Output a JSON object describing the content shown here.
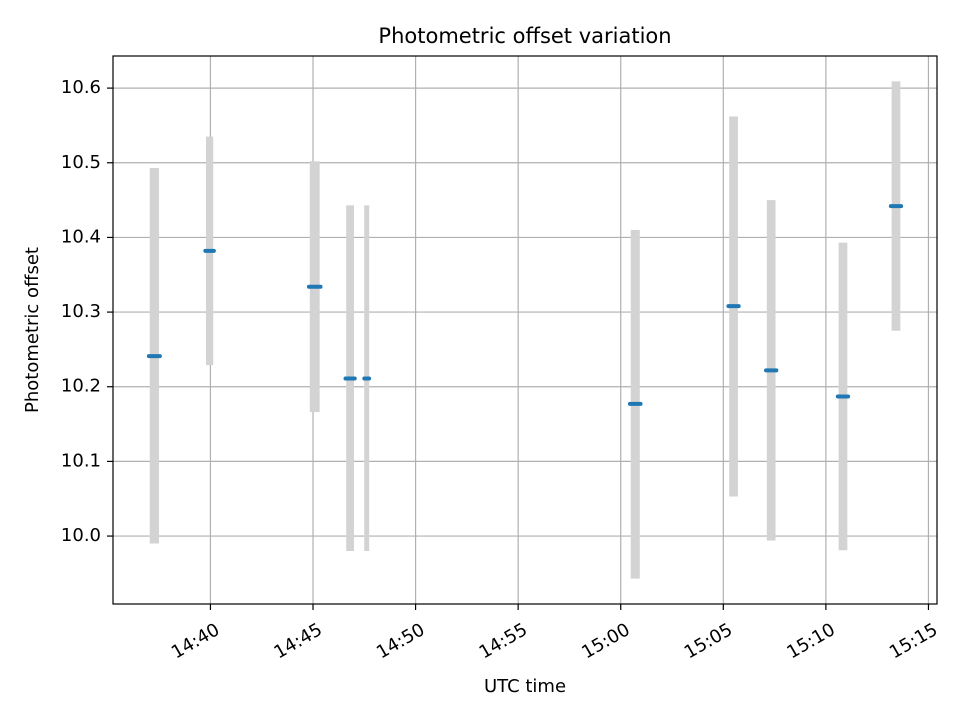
{
  "chart_data": {
    "type": "scatter",
    "title": "Photometric offset variation",
    "xlabel": "UTC time",
    "ylabel": "Photometric offset",
    "x_ticks": [
      "14:40",
      "14:45",
      "14:50",
      "14:55",
      "15:00",
      "15:05",
      "15:10",
      "15:15"
    ],
    "y_ticks": [
      "10.0",
      "10.1",
      "10.2",
      "10.3",
      "10.4",
      "10.5",
      "10.6"
    ],
    "xlim": [
      "14:35:15",
      "15:15:25"
    ],
    "ylim": [
      9.909,
      10.643
    ],
    "grid": true,
    "colors": {
      "point": "#1f77b4",
      "errorbar": "#d3d3d3",
      "grid": "#b0b0b0"
    },
    "series": [
      {
        "values": [
          {
            "start": "14:37:00",
            "end": "14:37:32",
            "y": 10.241,
            "y_low": 9.99,
            "y_high": 10.493
          },
          {
            "start": "14:39:45",
            "end": "14:40:10",
            "y": 10.382,
            "y_low": 10.229,
            "y_high": 10.535
          },
          {
            "start": "14:44:48",
            "end": "14:45:22",
            "y": 10.334,
            "y_low": 10.166,
            "y_high": 10.502
          },
          {
            "start": "14:46:35",
            "end": "14:47:02",
            "y": 10.211,
            "y_low": 9.98,
            "y_high": 10.443
          },
          {
            "start": "14:47:30",
            "end": "14:47:44",
            "y": 10.211,
            "y_low": 9.98,
            "y_high": 10.443
          },
          {
            "start": "15:00:27",
            "end": "15:00:58",
            "y": 10.177,
            "y_low": 9.943,
            "y_high": 10.41
          },
          {
            "start": "15:05:15",
            "end": "15:05:45",
            "y": 10.308,
            "y_low": 10.053,
            "y_high": 10.562
          },
          {
            "start": "15:07:05",
            "end": "15:07:35",
            "y": 10.222,
            "y_low": 9.994,
            "y_high": 10.45
          },
          {
            "start": "15:10:35",
            "end": "15:11:05",
            "y": 10.187,
            "y_low": 9.981,
            "y_high": 10.393
          },
          {
            "start": "15:13:10",
            "end": "15:13:40",
            "y": 10.442,
            "y_low": 10.275,
            "y_high": 10.609
          }
        ]
      }
    ]
  }
}
